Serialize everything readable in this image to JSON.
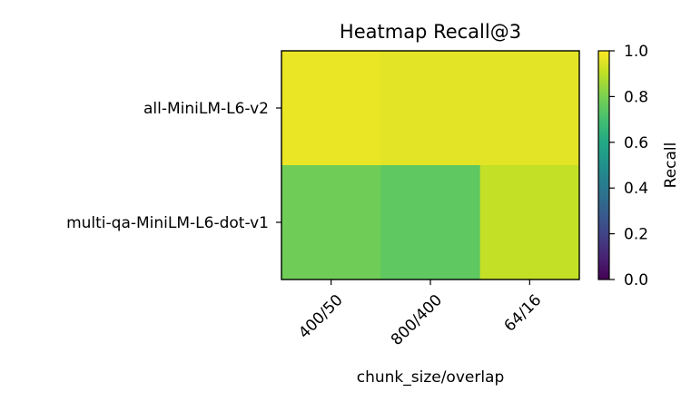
{
  "chart_data": {
    "type": "heatmap",
    "title": "Heatmap Recall@3",
    "xlabel": "chunk_size/overlap",
    "ylabel": "",
    "x_categories": [
      "400/50",
      "800/400",
      "64/16"
    ],
    "y_categories": [
      "all-MiniLM-L6-v2",
      "multi-qa-MiniLM-L6-dot-v1"
    ],
    "values": [
      [
        0.97,
        0.96,
        0.96
      ],
      [
        0.78,
        0.75,
        0.91
      ]
    ],
    "colormap": "viridis",
    "vmin": 0.0,
    "vmax": 1.0,
    "colorbar": {
      "label": "Recall",
      "ticks": [
        0.0,
        0.2,
        0.4,
        0.6,
        0.8,
        1.0
      ],
      "tick_labels": [
        "0.0",
        "0.2",
        "0.4",
        "0.6",
        "0.8",
        "1.0"
      ]
    },
    "x_tick_rotation_deg": 45,
    "grid": false
  }
}
